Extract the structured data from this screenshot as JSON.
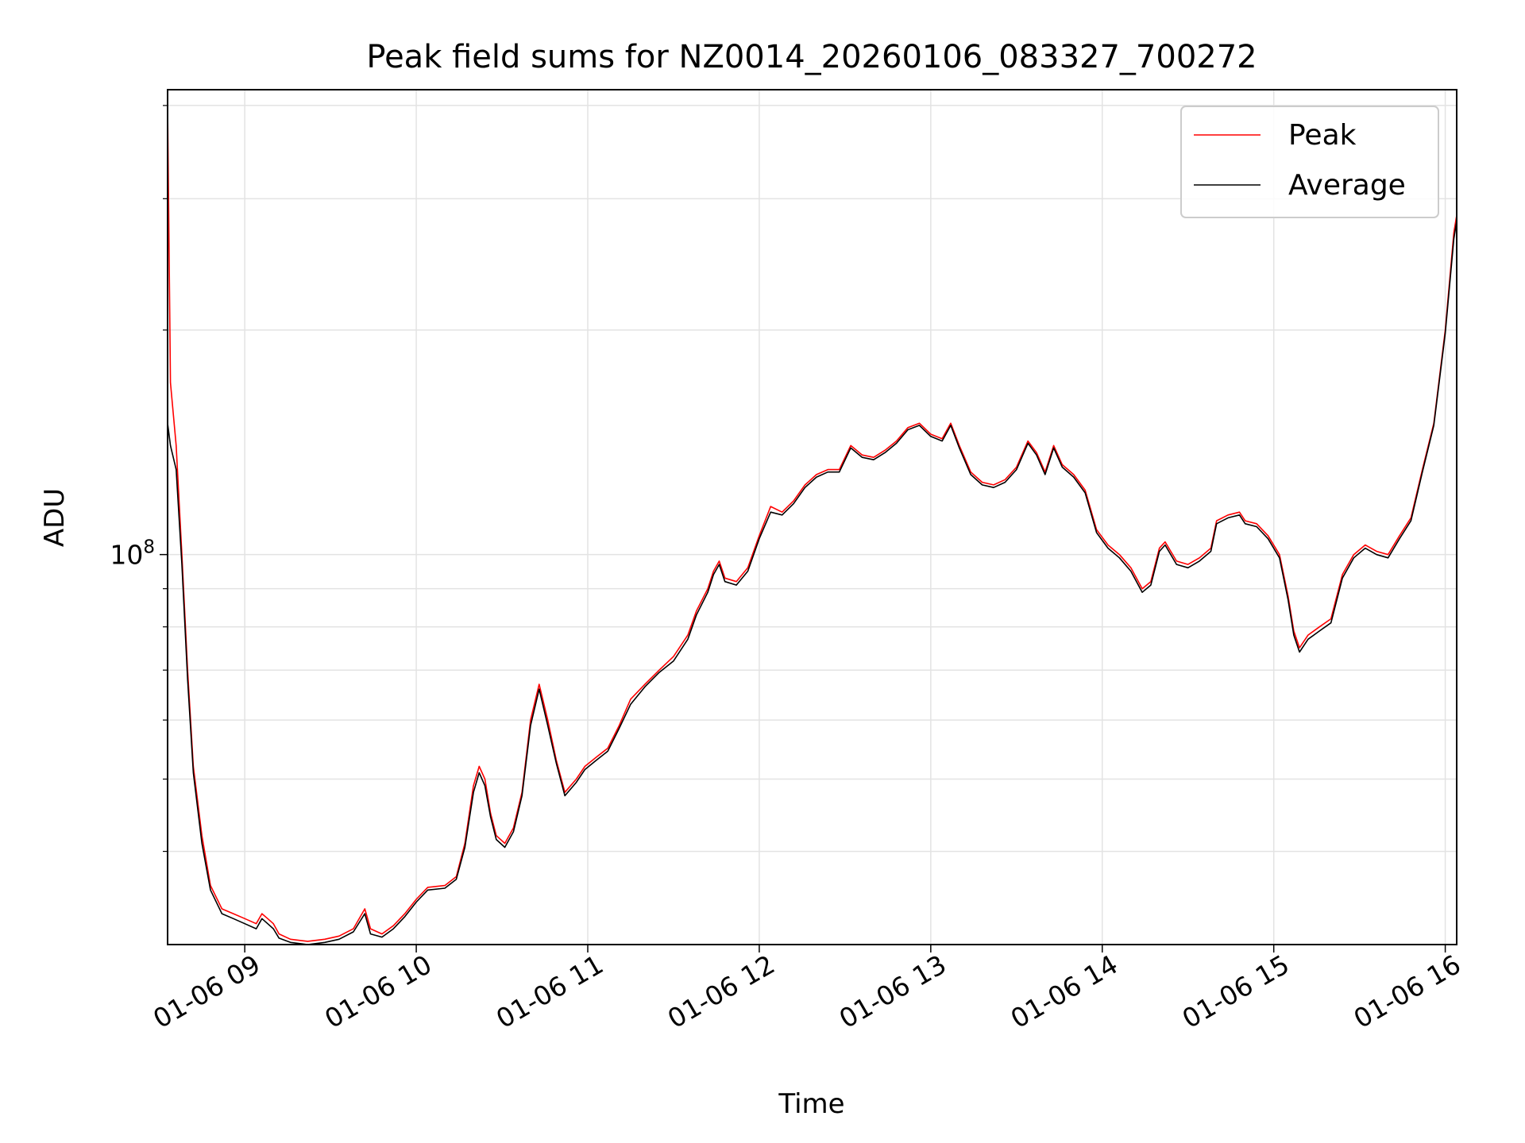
{
  "chart_data": {
    "type": "line",
    "title": "Peak field sums for NZ0014_20260106_083327_700272",
    "xlabel": "Time",
    "ylabel": "ADU",
    "yscale": "log",
    "grid": true,
    "legend_position": "top-right",
    "x_start": "2026-01-06 08:33",
    "x_end": "2026-01-06 16:04",
    "x_ticks": [
      "01-06 09",
      "01-06 10",
      "01-06 11",
      "01-06 12",
      "01-06 13",
      "01-06 14",
      "01-06 15",
      "01-06 16"
    ],
    "x_tick_values": [
      "2026-01-06 09:00",
      "2026-01-06 10:00",
      "2026-01-06 11:00",
      "2026-01-06 12:00",
      "2026-01-06 13:00",
      "2026-01-06 14:00",
      "2026-01-06 15:00",
      "2026-01-06 16:00"
    ],
    "y_major_ticks": [
      {
        "base": "10",
        "exp": "8",
        "value": 100000000
      }
    ],
    "ylim": [
      30000000,
      420000000
    ],
    "colors": {
      "peak": "#ff0000",
      "average": "#000000"
    },
    "series": [
      {
        "name": "Peak",
        "color": "#ff0000",
        "points": [
          [
            "08:33",
            400000000
          ],
          [
            "08:34",
            170000000
          ],
          [
            "08:36",
            140000000
          ],
          [
            "08:38",
            100000000
          ],
          [
            "08:40",
            70000000
          ],
          [
            "08:42",
            52000000
          ],
          [
            "08:45",
            42000000
          ],
          [
            "08:48",
            36000000
          ],
          [
            "08:52",
            33500000
          ],
          [
            "08:56",
            33000000
          ],
          [
            "09:00",
            32500000
          ],
          [
            "09:04",
            32000000
          ],
          [
            "09:06",
            33000000
          ],
          [
            "09:08",
            32500000
          ],
          [
            "09:10",
            32000000
          ],
          [
            "09:12",
            31000000
          ],
          [
            "09:16",
            30500000
          ],
          [
            "09:22",
            30300000
          ],
          [
            "09:28",
            30500000
          ],
          [
            "09:33",
            30800000
          ],
          [
            "09:38",
            31500000
          ],
          [
            "09:42",
            33500000
          ],
          [
            "09:44",
            31500000
          ],
          [
            "09:48",
            31000000
          ],
          [
            "09:52",
            31800000
          ],
          [
            "09:56",
            33000000
          ],
          [
            "10:00",
            34500000
          ],
          [
            "10:04",
            35800000
          ],
          [
            "10:10",
            36000000
          ],
          [
            "10:14",
            37000000
          ],
          [
            "10:17",
            41000000
          ],
          [
            "10:20",
            49000000
          ],
          [
            "10:22",
            52000000
          ],
          [
            "10:24",
            50000000
          ],
          [
            "10:26",
            45000000
          ],
          [
            "10:28",
            42000000
          ],
          [
            "10:31",
            41000000
          ],
          [
            "10:34",
            43000000
          ],
          [
            "10:37",
            48000000
          ],
          [
            "10:40",
            60000000
          ],
          [
            "10:43",
            67000000
          ],
          [
            "10:46",
            60000000
          ],
          [
            "10:49",
            53000000
          ],
          [
            "10:52",
            48000000
          ],
          [
            "10:56",
            50000000
          ],
          [
            "10:59",
            52000000
          ],
          [
            "11:03",
            53500000
          ],
          [
            "11:07",
            55000000
          ],
          [
            "11:11",
            59000000
          ],
          [
            "11:15",
            64000000
          ],
          [
            "11:20",
            67000000
          ],
          [
            "11:25",
            70000000
          ],
          [
            "11:30",
            73000000
          ],
          [
            "11:35",
            78000000
          ],
          [
            "11:38",
            84000000
          ],
          [
            "11:42",
            90000000
          ],
          [
            "11:44",
            95000000
          ],
          [
            "11:46",
            98000000
          ],
          [
            "11:48",
            93000000
          ],
          [
            "11:52",
            92000000
          ],
          [
            "11:56",
            96000000
          ],
          [
            "12:00",
            106000000
          ],
          [
            "12:04",
            116000000
          ],
          [
            "12:08",
            114000000
          ],
          [
            "12:12",
            118000000
          ],
          [
            "12:16",
            124000000
          ],
          [
            "12:20",
            128000000
          ],
          [
            "12:24",
            130000000
          ],
          [
            "12:28",
            130000000
          ],
          [
            "12:32",
            140000000
          ],
          [
            "12:36",
            136000000
          ],
          [
            "12:40",
            135000000
          ],
          [
            "12:44",
            138000000
          ],
          [
            "12:48",
            142000000
          ],
          [
            "12:52",
            148000000
          ],
          [
            "12:56",
            150000000
          ],
          [
            "13:00",
            145000000
          ],
          [
            "13:04",
            143000000
          ],
          [
            "13:07",
            150000000
          ],
          [
            "13:10",
            140000000
          ],
          [
            "13:14",
            129000000
          ],
          [
            "13:18",
            125000000
          ],
          [
            "13:22",
            124000000
          ],
          [
            "13:26",
            126000000
          ],
          [
            "13:30",
            131000000
          ],
          [
            "13:34",
            142000000
          ],
          [
            "13:37",
            137000000
          ],
          [
            "13:40",
            129000000
          ],
          [
            "13:43",
            140000000
          ],
          [
            "13:46",
            132000000
          ],
          [
            "13:50",
            128000000
          ],
          [
            "13:54",
            122000000
          ],
          [
            "13:58",
            108000000
          ],
          [
            "14:02",
            103000000
          ],
          [
            "14:06",
            100000000
          ],
          [
            "14:10",
            96000000
          ],
          [
            "14:14",
            90000000
          ],
          [
            "14:17",
            92000000
          ],
          [
            "14:20",
            102000000
          ],
          [
            "14:22",
            104000000
          ],
          [
            "14:26",
            98000000
          ],
          [
            "14:30",
            97000000
          ],
          [
            "14:34",
            99000000
          ],
          [
            "14:38",
            102000000
          ],
          [
            "14:40",
            111000000
          ],
          [
            "14:44",
            113000000
          ],
          [
            "14:48",
            114000000
          ],
          [
            "14:50",
            111000000
          ],
          [
            "14:54",
            110000000
          ],
          [
            "14:58",
            106000000
          ],
          [
            "15:02",
            100000000
          ],
          [
            "15:05",
            88000000
          ],
          [
            "15:07",
            79000000
          ],
          [
            "15:09",
            75000000
          ],
          [
            "15:12",
            78000000
          ],
          [
            "15:16",
            80000000
          ],
          [
            "15:20",
            82000000
          ],
          [
            "15:24",
            94000000
          ],
          [
            "15:28",
            100000000
          ],
          [
            "15:32",
            103000000
          ],
          [
            "15:36",
            101000000
          ],
          [
            "15:40",
            100000000
          ],
          [
            "15:44",
            106000000
          ],
          [
            "15:48",
            112000000
          ],
          [
            "15:52",
            130000000
          ],
          [
            "15:56",
            150000000
          ],
          [
            "16:00",
            200000000
          ],
          [
            "16:03",
            270000000
          ],
          [
            "16:04",
            285000000
          ]
        ]
      },
      {
        "name": "Average",
        "color": "#000000",
        "points": [
          [
            "08:33",
            150000000
          ],
          [
            "08:34",
            140000000
          ],
          [
            "08:36",
            130000000
          ],
          [
            "08:38",
            97000000
          ],
          [
            "08:40",
            68000000
          ],
          [
            "08:42",
            51000000
          ],
          [
            "08:45",
            41000000
          ],
          [
            "08:48",
            35500000
          ],
          [
            "08:52",
            33000000
          ],
          [
            "08:56",
            32500000
          ],
          [
            "09:00",
            32000000
          ],
          [
            "09:04",
            31500000
          ],
          [
            "09:06",
            32500000
          ],
          [
            "09:08",
            32000000
          ],
          [
            "09:10",
            31500000
          ],
          [
            "09:12",
            30600000
          ],
          [
            "09:16",
            30200000
          ],
          [
            "09:22",
            30000000
          ],
          [
            "09:28",
            30200000
          ],
          [
            "09:33",
            30500000
          ],
          [
            "09:38",
            31200000
          ],
          [
            "09:42",
            33000000
          ],
          [
            "09:44",
            31000000
          ],
          [
            "09:48",
            30700000
          ],
          [
            "09:52",
            31500000
          ],
          [
            "09:56",
            32700000
          ],
          [
            "10:00",
            34200000
          ],
          [
            "10:04",
            35500000
          ],
          [
            "10:10",
            35700000
          ],
          [
            "10:14",
            36700000
          ],
          [
            "10:17",
            40500000
          ],
          [
            "10:20",
            48000000
          ],
          [
            "10:22",
            51000000
          ],
          [
            "10:24",
            49000000
          ],
          [
            "10:26",
            44500000
          ],
          [
            "10:28",
            41500000
          ],
          [
            "10:31",
            40500000
          ],
          [
            "10:34",
            42500000
          ],
          [
            "10:37",
            47500000
          ],
          [
            "10:40",
            59000000
          ],
          [
            "10:43",
            66000000
          ],
          [
            "10:46",
            59000000
          ],
          [
            "10:49",
            52500000
          ],
          [
            "10:52",
            47500000
          ],
          [
            "10:56",
            49500000
          ],
          [
            "10:59",
            51500000
          ],
          [
            "11:03",
            53000000
          ],
          [
            "11:07",
            54500000
          ],
          [
            "11:11",
            58500000
          ],
          [
            "11:15",
            63000000
          ],
          [
            "11:20",
            66500000
          ],
          [
            "11:25",
            69500000
          ],
          [
            "11:30",
            72000000
          ],
          [
            "11:35",
            77000000
          ],
          [
            "11:38",
            83000000
          ],
          [
            "11:42",
            89000000
          ],
          [
            "11:44",
            94000000
          ],
          [
            "11:46",
            97000000
          ],
          [
            "11:48",
            92000000
          ],
          [
            "11:52",
            91000000
          ],
          [
            "11:56",
            95000000
          ],
          [
            "12:00",
            105000000
          ],
          [
            "12:04",
            114000000
          ],
          [
            "12:08",
            113000000
          ],
          [
            "12:12",
            117000000
          ],
          [
            "12:16",
            123000000
          ],
          [
            "12:20",
            127000000
          ],
          [
            "12:24",
            129000000
          ],
          [
            "12:28",
            129000000
          ],
          [
            "12:32",
            139000000
          ],
          [
            "12:36",
            135000000
          ],
          [
            "12:40",
            134000000
          ],
          [
            "12:44",
            137000000
          ],
          [
            "12:48",
            141000000
          ],
          [
            "12:52",
            147000000
          ],
          [
            "12:56",
            149000000
          ],
          [
            "13:00",
            144000000
          ],
          [
            "13:04",
            142000000
          ],
          [
            "13:07",
            149000000
          ],
          [
            "13:10",
            139000000
          ],
          [
            "13:14",
            128000000
          ],
          [
            "13:18",
            124000000
          ],
          [
            "13:22",
            123000000
          ],
          [
            "13:26",
            125000000
          ],
          [
            "13:30",
            130000000
          ],
          [
            "13:34",
            141000000
          ],
          [
            "13:37",
            136000000
          ],
          [
            "13:40",
            128000000
          ],
          [
            "13:43",
            139000000
          ],
          [
            "13:46",
            131000000
          ],
          [
            "13:50",
            127000000
          ],
          [
            "13:54",
            121000000
          ],
          [
            "13:58",
            107000000
          ],
          [
            "14:02",
            102000000
          ],
          [
            "14:06",
            99000000
          ],
          [
            "14:10",
            95000000
          ],
          [
            "14:14",
            89000000
          ],
          [
            "14:17",
            91000000
          ],
          [
            "14:20",
            101000000
          ],
          [
            "14:22",
            103000000
          ],
          [
            "14:26",
            97000000
          ],
          [
            "14:30",
            96000000
          ],
          [
            "14:34",
            98000000
          ],
          [
            "14:38",
            101000000
          ],
          [
            "14:40",
            110000000
          ],
          [
            "14:44",
            112000000
          ],
          [
            "14:48",
            113000000
          ],
          [
            "14:50",
            110000000
          ],
          [
            "14:54",
            109000000
          ],
          [
            "14:58",
            105000000
          ],
          [
            "15:02",
            99000000
          ],
          [
            "15:05",
            87000000
          ],
          [
            "15:07",
            78000000
          ],
          [
            "15:09",
            74000000
          ],
          [
            "15:12",
            77000000
          ],
          [
            "15:16",
            79000000
          ],
          [
            "15:20",
            81000000
          ],
          [
            "15:24",
            93000000
          ],
          [
            "15:28",
            99000000
          ],
          [
            "15:32",
            102000000
          ],
          [
            "15:36",
            100000000
          ],
          [
            "15:40",
            99000000
          ],
          [
            "15:44",
            105000000
          ],
          [
            "15:48",
            111000000
          ],
          [
            "15:52",
            129000000
          ],
          [
            "15:56",
            149000000
          ],
          [
            "16:00",
            198000000
          ],
          [
            "16:03",
            265000000
          ],
          [
            "16:04",
            280000000
          ]
        ]
      }
    ]
  }
}
